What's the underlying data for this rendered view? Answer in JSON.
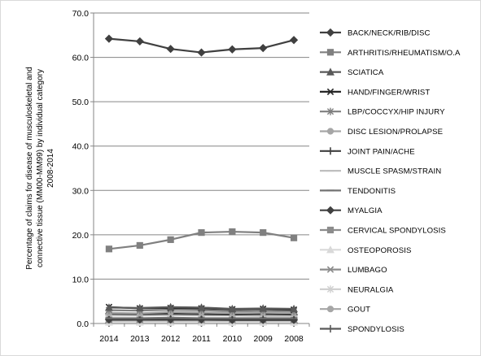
{
  "chart_data": {
    "type": "line",
    "title": "",
    "xlabel": "",
    "ylabel_lines": [
      "Percentage of claims for disease of musculoskeletal and",
      "connective tissue  (MM00-MM99) by individual category",
      "2008-2014"
    ],
    "categories": [
      "2014",
      "2013",
      "2012",
      "2011",
      "2010",
      "2009",
      "2008"
    ],
    "ylim": [
      0,
      70
    ],
    "yticks": [
      "0.0",
      "10.0",
      "20.0",
      "30.0",
      "40.0",
      "50.0",
      "60.0",
      "70.0"
    ],
    "grid": "horizontal",
    "legend_position": "right",
    "series": [
      {
        "name": "BACK/NECK/RIB/DISC",
        "color": "#404040",
        "marker": "diamond",
        "values": [
          64.2,
          63.6,
          61.9,
          61.1,
          61.8,
          62.1,
          63.9
        ]
      },
      {
        "name": "ARTHRITIS/RHEUMATISM/O.A",
        "color": "#808080",
        "marker": "square",
        "values": [
          16.8,
          17.6,
          18.9,
          20.5,
          20.7,
          20.5,
          19.3
        ]
      },
      {
        "name": "SCIATICA",
        "color": "#595959",
        "marker": "triangle",
        "values": [
          3.6,
          3.5,
          3.7,
          3.6,
          3.3,
          3.4,
          3.3
        ]
      },
      {
        "name": "HAND/FINGER/WRIST",
        "color": "#262626",
        "marker": "x",
        "values": [
          3.7,
          3.4,
          3.5,
          3.4,
          3.2,
          3.3,
          3.1
        ]
      },
      {
        "name": "LBP/COCCYX/HIP INJURY",
        "color": "#7f7f7f",
        "marker": "star",
        "values": [
          3.0,
          2.9,
          3.1,
          3.0,
          2.8,
          2.9,
          2.8
        ]
      },
      {
        "name": "DISC LESION/PROLAPSE",
        "color": "#a6a6a6",
        "marker": "circle",
        "values": [
          2.4,
          2.3,
          2.6,
          2.5,
          2.4,
          2.5,
          2.4
        ]
      },
      {
        "name": "JOINT PAIN/ACHE",
        "color": "#404040",
        "marker": "plus",
        "values": [
          2.2,
          2.1,
          2.2,
          2.1,
          2.0,
          2.1,
          2.0
        ]
      },
      {
        "name": "MUSCLE SPASM/STRAIN",
        "color": "#bfbfbf",
        "marker": "dash",
        "values": [
          1.8,
          1.8,
          1.9,
          1.8,
          1.8,
          1.7,
          1.7
        ]
      },
      {
        "name": "TENDONITIS",
        "color": "#737373",
        "marker": "dash",
        "values": [
          1.2,
          1.2,
          1.3,
          1.2,
          1.2,
          1.2,
          1.2
        ]
      },
      {
        "name": "MYALGIA",
        "color": "#404040",
        "marker": "diamond",
        "values": [
          0.9,
          0.9,
          0.9,
          0.9,
          0.8,
          0.8,
          0.8
        ]
      },
      {
        "name": "CERVICAL SPONDYLOSIS",
        "color": "#8c8c8c",
        "marker": "square",
        "values": [
          0.8,
          0.8,
          0.8,
          0.8,
          0.8,
          0.8,
          0.8
        ]
      },
      {
        "name": "OSTEOPOROSIS",
        "color": "#d9d9d9",
        "marker": "triangle",
        "values": [
          0.3,
          0.3,
          0.3,
          0.3,
          0.3,
          0.3,
          0.3
        ]
      },
      {
        "name": "LUMBAGO",
        "color": "#8c8c8c",
        "marker": "x",
        "values": [
          0.5,
          0.5,
          0.5,
          0.5,
          0.5,
          0.5,
          0.5
        ]
      },
      {
        "name": "NEURALGIA",
        "color": "#d0d0d0",
        "marker": "star",
        "values": [
          0.3,
          0.3,
          0.3,
          0.3,
          0.3,
          0.3,
          0.3
        ]
      },
      {
        "name": "GOUT",
        "color": "#a6a6a6",
        "marker": "circle",
        "values": [
          0.2,
          0.2,
          0.2,
          0.2,
          0.2,
          0.2,
          0.2
        ]
      },
      {
        "name": "SPONDYLOSIS",
        "color": "#595959",
        "marker": "plus",
        "values": [
          0.1,
          0.1,
          0.1,
          0.1,
          0.1,
          0.1,
          0.1
        ]
      }
    ]
  }
}
